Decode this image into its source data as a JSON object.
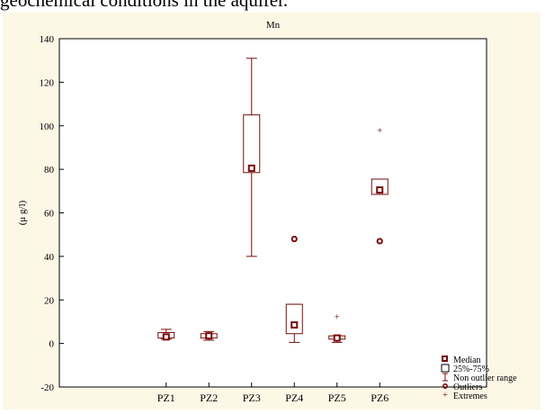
{
  "document": {
    "text_fragment": "geochemical conditions in the aquifer."
  },
  "chart_data": {
    "type": "box",
    "title": "Mn",
    "xlabel": "",
    "ylabel": "(μ g/l)",
    "ylim": [
      -20,
      140
    ],
    "yticks": [
      -20,
      0,
      20,
      40,
      60,
      80,
      100,
      120,
      140
    ],
    "grid": false,
    "legend_position": "bottom-right",
    "categories": [
      "PZ1",
      "PZ2",
      "PZ3",
      "PZ4",
      "PZ5",
      "PZ6"
    ],
    "boxes": [
      {
        "category": "PZ1",
        "median": 3,
        "q1": 2.5,
        "q3": 5,
        "whisker_low": 2,
        "whisker_high": 6.5,
        "outliers": [],
        "extremes": []
      },
      {
        "category": "PZ2",
        "median": 3.5,
        "q1": 2.5,
        "q3": 4.5,
        "whisker_low": 1.5,
        "whisker_high": 5.5,
        "outliers": [],
        "extremes": []
      },
      {
        "category": "PZ3",
        "median": 80.5,
        "q1": 78.5,
        "q3": 105,
        "whisker_low": 40,
        "whisker_high": 131,
        "outliers": [],
        "extremes": []
      },
      {
        "category": "PZ4",
        "median": 8.5,
        "q1": 4.5,
        "q3": 18,
        "whisker_low": 0.5,
        "whisker_high": 18,
        "outliers": [
          48
        ],
        "extremes": []
      },
      {
        "category": "PZ5",
        "median": 2.5,
        "q1": 2,
        "q3": 3.5,
        "whisker_low": 0.5,
        "whisker_high": 3.5,
        "outliers": [],
        "extremes": [
          12.5
        ]
      },
      {
        "category": "PZ6",
        "median": 70.5,
        "q1": 68.5,
        "q3": 75.5,
        "whisker_low": 68.5,
        "whisker_high": 75.5,
        "outliers": [
          47
        ],
        "extremes": [
          98
        ]
      }
    ],
    "legend": [
      "Median",
      "25%-75%",
      "Non outlier range",
      "Outliers",
      "Extremes"
    ],
    "colors": {
      "marks": "#7a0b0b",
      "axis": "#000000",
      "panel": "#fdf7e6"
    }
  }
}
